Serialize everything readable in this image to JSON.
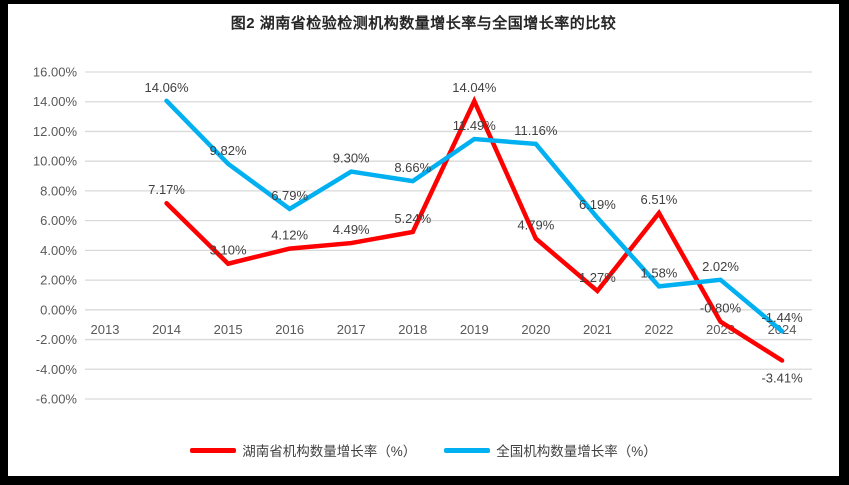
{
  "title": "图2 湖南省检验检测机构数量增长率与全国增长率的比较",
  "colors": {
    "hunan_series": "#FF0000",
    "national_series": "#00B0F0",
    "gridline": "#D9D9D9",
    "tick_text": "#595959",
    "data_label_text": "#404040",
    "frame": "#000000",
    "background": "#FFFFFF"
  },
  "chart_data": {
    "type": "line",
    "title": "图2 湖南省检验检测机构数量增长率与全国增长率的比较",
    "categories": [
      "2013",
      "2014",
      "2015",
      "2016",
      "2017",
      "2018",
      "2019",
      "2020",
      "2021",
      "2022",
      "2023",
      "2024"
    ],
    "series": [
      {
        "name": "湖南省机构数量增长率（%）",
        "color": "#FF0000",
        "values": [
          null,
          7.17,
          3.1,
          4.12,
          4.49,
          5.24,
          14.04,
          4.79,
          1.27,
          6.51,
          -0.8,
          -3.41
        ],
        "labels": [
          null,
          "7.17%",
          "3.10%",
          "4.12%",
          "4.49%",
          "5.24%",
          "14.04%",
          "4.79%",
          "1.27%",
          "6.51%",
          "-0.80%",
          "-3.41%"
        ]
      },
      {
        "name": "全国机构数量增长率（%）",
        "color": "#00B0F0",
        "values": [
          null,
          14.06,
          9.82,
          6.79,
          9.3,
          8.66,
          11.49,
          11.16,
          6.19,
          1.58,
          2.02,
          -1.44
        ],
        "labels": [
          null,
          "14.06%",
          "9.82%",
          "6.79%",
          "9.30%",
          "8.66%",
          "11.49%",
          "11.16%",
          "6.19%",
          "1.58%",
          "2.02%",
          "-1.44%"
        ]
      }
    ],
    "y_ticks": [
      "16.00%",
      "14.00%",
      "12.00%",
      "10.00%",
      "8.00%",
      "6.00%",
      "4.00%",
      "2.00%",
      "0.00%",
      "-2.00%",
      "-4.00%",
      "-6.00%"
    ],
    "ylim": [
      -6,
      16
    ],
    "ytick_step": 2,
    "grid": "horizontal",
    "legend_position": "bottom"
  },
  "legend": {
    "items": [
      {
        "label": "湖南省机构数量增长率（%）",
        "color": "#FF0000"
      },
      {
        "label": "全国机构数量增长率（%）",
        "color": "#00B0F0"
      }
    ]
  }
}
